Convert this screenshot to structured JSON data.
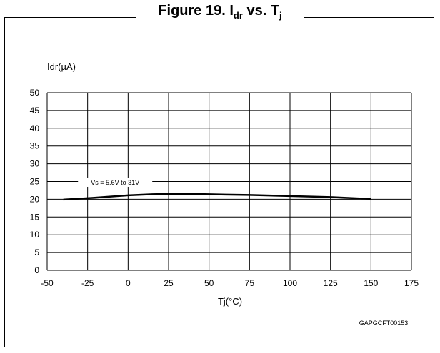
{
  "figure": {
    "title_main": "Figure 19. I",
    "title_sub1": "dr",
    "title_mid": " vs. T",
    "title_sub2": "j",
    "code": "GAPGCFT00153"
  },
  "chart_data": {
    "type": "line",
    "title": "Figure 19. Idr vs. Tj",
    "xlabel": "Tj(°C)",
    "ylabel": "Idr(µA)",
    "xlim": [
      -50,
      175
    ],
    "ylim": [
      0,
      50
    ],
    "xticks": [
      -50,
      -25,
      0,
      25,
      50,
      75,
      100,
      125,
      150,
      175
    ],
    "yticks": [
      0,
      5,
      10,
      15,
      20,
      25,
      30,
      35,
      40,
      45,
      50
    ],
    "grid": true,
    "series": [
      {
        "name": "Vs = 5.6V to 31V",
        "color": "#000000",
        "x": [
          -40,
          -25,
          0,
          15,
          25,
          40,
          60,
          75,
          100,
          125,
          150
        ],
        "y": [
          19.9,
          20.3,
          21.1,
          21.4,
          21.5,
          21.5,
          21.3,
          21.2,
          20.9,
          20.6,
          20.1
        ]
      }
    ]
  }
}
